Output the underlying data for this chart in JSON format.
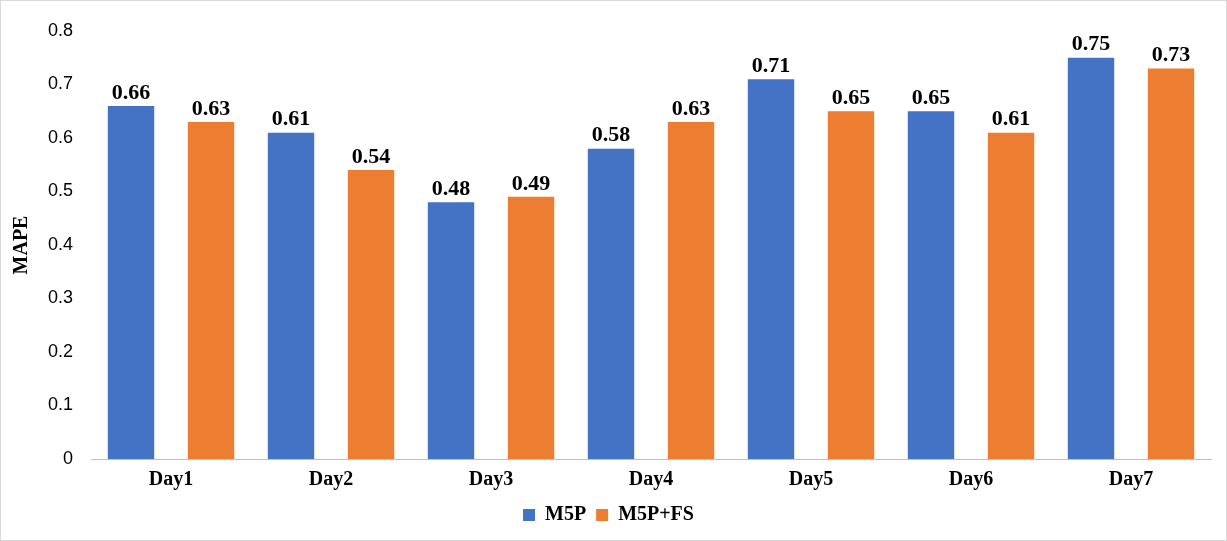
{
  "chart_data": {
    "type": "bar",
    "ylabel": "MAPE",
    "categories": [
      "Day1",
      "Day2",
      "Day3",
      "Day4",
      "Day5",
      "Day6",
      "Day7"
    ],
    "series": [
      {
        "name": "M5P",
        "color": "#4472c4",
        "values": [
          0.66,
          0.61,
          0.48,
          0.58,
          0.71,
          0.65,
          0.75
        ]
      },
      {
        "name": "M5P+FS",
        "color": "#ed7d31",
        "values": [
          0.63,
          0.54,
          0.49,
          0.63,
          0.65,
          0.61,
          0.73
        ]
      }
    ],
    "ylim": [
      0,
      0.8
    ],
    "yticks": [
      0,
      0.1,
      0.2,
      0.3,
      0.4,
      0.5,
      0.6,
      0.7,
      0.8
    ],
    "grid": false,
    "legend": "bottom",
    "data_labels": true
  }
}
